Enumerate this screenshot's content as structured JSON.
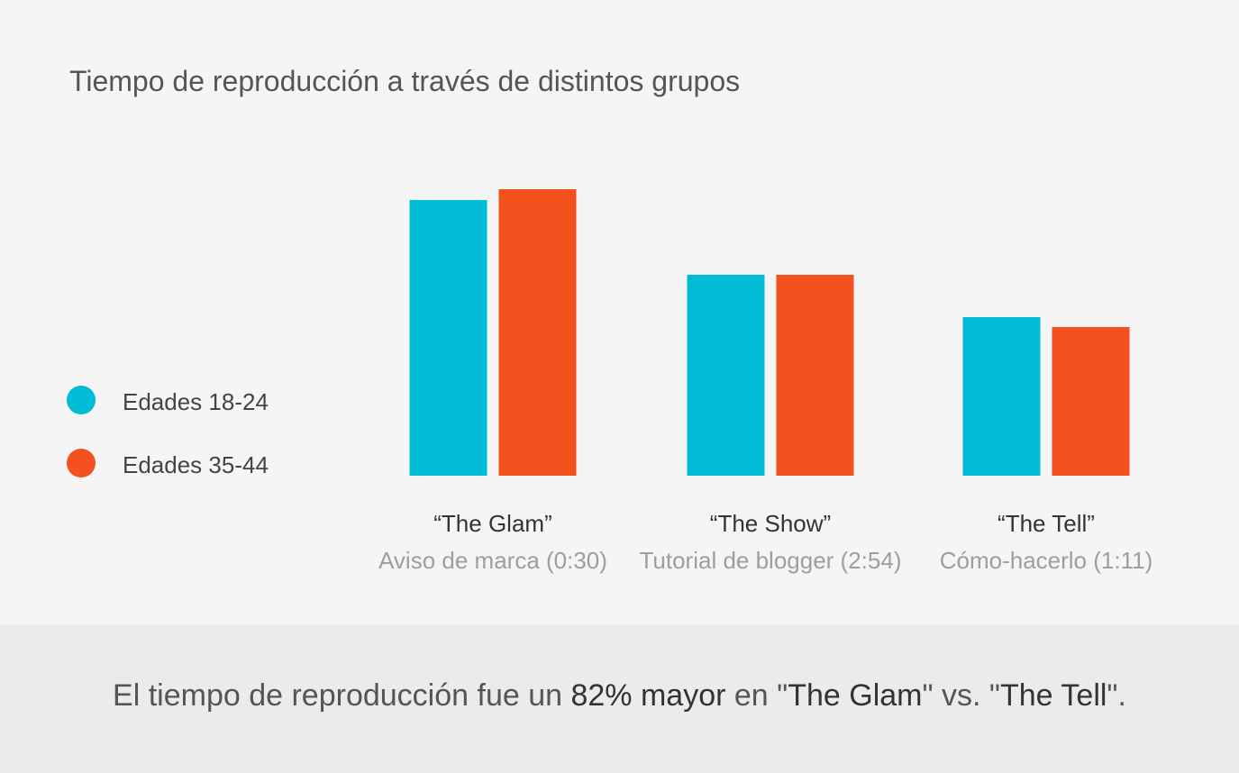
{
  "title": "Tiempo de reproducción a través de distintos grupos",
  "colors": {
    "series_a": "#00bcd4",
    "series_b": "#f4511e"
  },
  "legend": [
    {
      "label": "Edades 18-24",
      "color": "#00bcd4"
    },
    {
      "label": "Edades 35-44",
      "color": "#f4511e"
    }
  ],
  "chart_data": {
    "type": "bar",
    "categories": [
      "“The Glam”",
      "“The Show”",
      "“The Tell”"
    ],
    "subtitles": [
      "Aviso de marca (0:30)",
      "Tutorial de blogger (2:54)",
      "Cómo-hacerlo (1:11)"
    ],
    "series": [
      {
        "name": "Edades 18-24",
        "values": [
          306,
          223,
          176
        ]
      },
      {
        "name": "Edades 35-44",
        "values": [
          318,
          223,
          165
        ]
      }
    ],
    "ylim": [
      0,
      330
    ],
    "grid": false,
    "legend_position": "left"
  },
  "footer": {
    "part1": "El tiempo de reproducción fue un ",
    "part2": "82% mayor",
    "part3": " en \"",
    "part4": "The Glam",
    "part5": "\" vs. \"",
    "part6": "The Tell",
    "part7": "\"."
  }
}
